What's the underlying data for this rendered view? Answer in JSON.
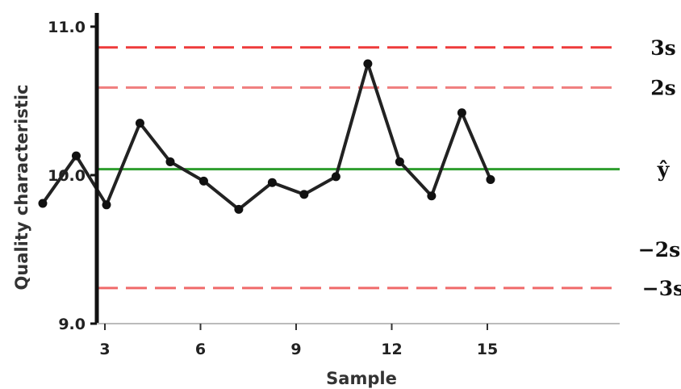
{
  "chart_data": {
    "type": "line",
    "xlabel": "Sample",
    "ylabel": "Quality characteristic",
    "xlim": [
      0,
      16
    ],
    "ylim": [
      9.0,
      11.0
    ],
    "x_ticks": [
      3,
      6,
      9,
      12,
      15
    ],
    "y_ticks": [
      9.0,
      10.0,
      11.0
    ],
    "y_tick_labels": [
      "9.0",
      "10.0",
      "11.0"
    ],
    "grid": false,
    "series": [
      {
        "color": "#222222",
        "x": [
          1.05,
          2.1,
          3.05,
          4.1,
          5.05,
          6.1,
          7.2,
          8.25,
          9.25,
          10.25,
          11.25,
          12.25,
          13.25,
          14.2,
          15.1
        ],
        "y": [
          9.81,
          10.13,
          9.8,
          10.35,
          10.09,
          9.96,
          9.77,
          9.95,
          9.87,
          9.99,
          10.75,
          10.09,
          9.86,
          10.42,
          9.97
        ]
      }
    ],
    "reference_lines": [
      {
        "label": "3s",
        "y": 10.86,
        "style": "dashed",
        "color": "#ee3b3b"
      },
      {
        "label": "2s",
        "y": 10.59,
        "style": "dashed",
        "color": "#f08080"
      },
      {
        "label": "ŷ",
        "y": 10.04,
        "style": "solid",
        "color": "#2e9e2e"
      },
      {
        "label": "−3s",
        "y": 9.24,
        "style": "dashed",
        "color": "#f06a6a"
      }
    ],
    "extra_labels": [
      {
        "label": "−2s",
        "y": 9.5
      }
    ]
  }
}
